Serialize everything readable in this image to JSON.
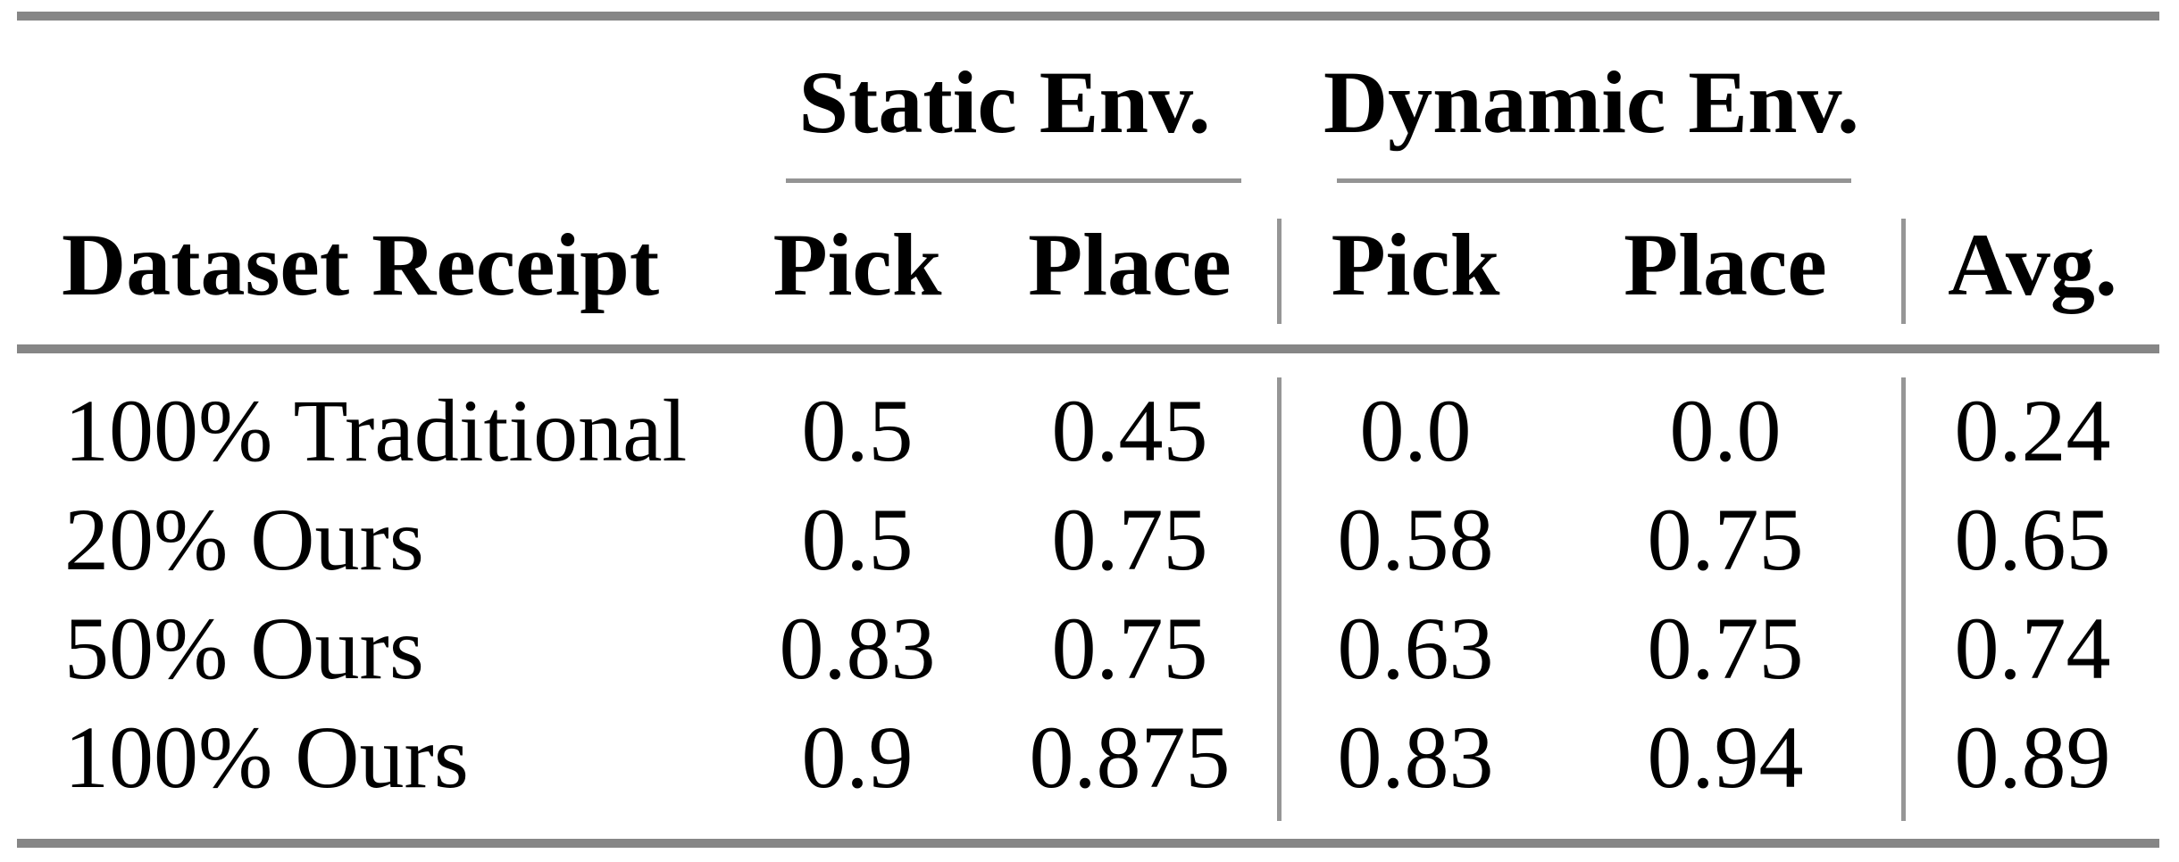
{
  "table": {
    "row_header": "Dataset Receipt",
    "groups": [
      {
        "label": "Static Env.",
        "sub": [
          "Pick",
          "Place"
        ]
      },
      {
        "label": "Dynamic Env.",
        "sub": [
          "Pick",
          "Place"
        ]
      }
    ],
    "avg_header": "Avg.",
    "rows": [
      {
        "label": "100% Traditional",
        "values": [
          "0.5",
          "0.45",
          "0.0",
          "0.0",
          "0.24"
        ]
      },
      {
        "label": "20% Ours",
        "values": [
          "0.5",
          "0.75",
          "0.58",
          "0.75",
          "0.65"
        ]
      },
      {
        "label": "50% Ours",
        "values": [
          "0.83",
          "0.75",
          "0.63",
          "0.75",
          "0.74"
        ]
      },
      {
        "label": "100% Ours",
        "values": [
          "0.9",
          "0.875",
          "0.83",
          "0.94",
          "0.89"
        ]
      }
    ]
  },
  "chart_data": {
    "type": "table",
    "columns": [
      "Dataset Receipt",
      "Static Env. Pick",
      "Static Env. Place",
      "Dynamic Env. Pick",
      "Dynamic Env. Place",
      "Avg."
    ],
    "rows": [
      [
        "100% Traditional",
        0.5,
        0.45,
        0.0,
        0.0,
        0.24
      ],
      [
        "20% Ours",
        0.5,
        0.75,
        0.58,
        0.75,
        0.65
      ],
      [
        "50% Ours",
        0.83,
        0.75,
        0.63,
        0.75,
        0.74
      ],
      [
        "100% Ours",
        0.9,
        0.875,
        0.83,
        0.94,
        0.89
      ]
    ]
  },
  "colors": {
    "background": "#ffffff",
    "text": "#000000",
    "rule_thick": "#868686",
    "rule_thin": "#949494",
    "vline": "#969696"
  }
}
